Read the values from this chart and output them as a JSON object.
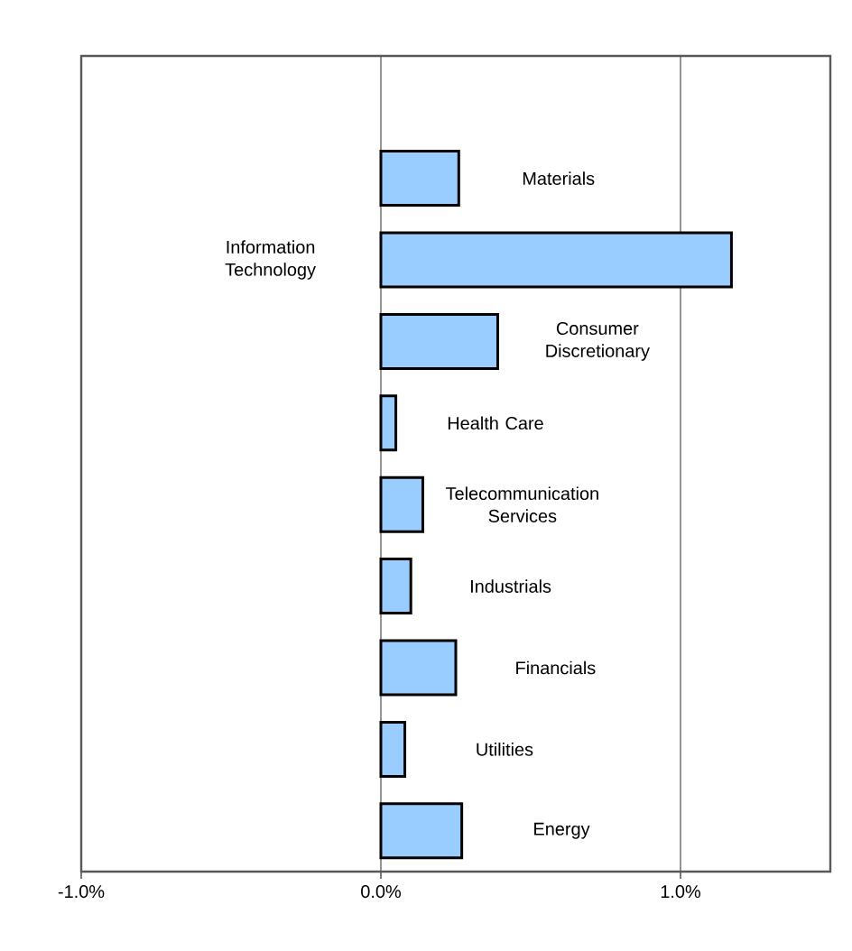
{
  "chart_data": {
    "type": "bar",
    "orientation": "horizontal",
    "categories": [
      null,
      "Materials",
      "Information Technology",
      "Consumer Discretionary",
      "Health Care",
      "Telecommunication Services",
      "Industrials",
      "Financials",
      "Utilities",
      "Energy"
    ],
    "values": [
      null,
      0.26,
      1.17,
      0.39,
      0.05,
      0.14,
      0.1,
      0.25,
      0.08,
      0.27
    ],
    "color": "#99ccff",
    "xlim": [
      -1,
      1.5
    ],
    "xticks": [
      {
        "value": -1,
        "label": "-1.0%"
      },
      {
        "value": 0,
        "label": "0.0%"
      },
      {
        "value": 1,
        "label": "1.0%"
      }
    ],
    "grid": "x"
  }
}
